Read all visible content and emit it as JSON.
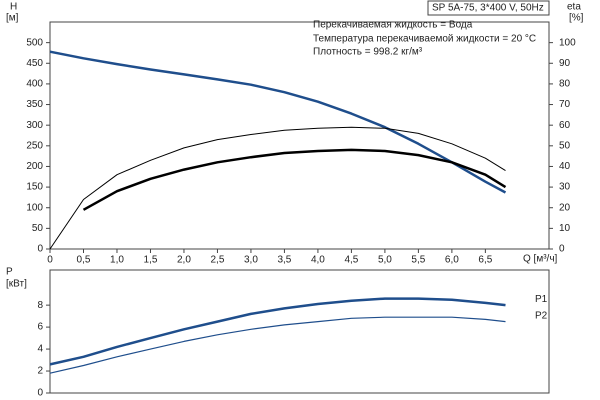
{
  "chart_data": [
    {
      "type": "line",
      "x_label": "Q [м³/ч]",
      "y_label": [
        "H",
        "[м]"
      ],
      "y2_label": [
        "eta",
        "[%]"
      ],
      "legend_box": "SP 5A-75, 3*400 V, 50Hz",
      "annotations": [
        "Перекачиваемая жидкость = Вода",
        "Температура перекачиваемой жидкости = 20 °C",
        "Плотность = 998.2 кг/м³"
      ],
      "x": [
        0,
        0.5,
        1,
        1.5,
        2,
        2.5,
        3,
        3.5,
        4,
        4.5,
        5,
        5.5,
        6,
        6.5,
        6.8
      ],
      "xlim": [
        0,
        7.45
      ],
      "xticks": [
        0,
        {
          "value": 0.5,
          "label": "0,5"
        },
        {
          "value": 1,
          "label": "1,0"
        },
        {
          "value": 1.5,
          "label": "1,5"
        },
        {
          "value": 2,
          "label": "2,0"
        },
        {
          "value": 2.5,
          "label": "2,5"
        },
        {
          "value": 3,
          "label": "3,0"
        },
        {
          "value": 3.5,
          "label": "3,5"
        },
        {
          "value": 4,
          "label": "4,0"
        },
        {
          "value": 4.5,
          "label": "4,5"
        },
        {
          "value": 5,
          "label": "5,0"
        },
        {
          "value": 5.5,
          "label": "5,5"
        },
        {
          "value": 6,
          "label": "6,0"
        },
        {
          "value": 6.5,
          "label": "6,5"
        }
      ],
      "ylim": [
        0,
        550
      ],
      "yticks": [
        0,
        50,
        100,
        150,
        200,
        250,
        300,
        350,
        400,
        450,
        500
      ],
      "y2lim": [
        0,
        110
      ],
      "y2ticks": [
        0,
        10,
        20,
        30,
        40,
        50,
        60,
        70,
        80,
        90,
        100
      ],
      "series": [
        {
          "color": "#1f4e8c",
          "linewidth": 2.5,
          "values": [
            478,
            462,
            448,
            435,
            423,
            411,
            398,
            380,
            357,
            328,
            295,
            255,
            210,
            163,
            137
          ]
        },
        {
          "color": "#000000",
          "linewidth": 1,
          "axis": "y2",
          "values": [
            0,
            24,
            36,
            43,
            49,
            53,
            55.5,
            57.5,
            58.5,
            59,
            58.5,
            56,
            51,
            44,
            38
          ]
        },
        {
          "color": "#000000",
          "linewidth": 2.5,
          "axis": "y2",
          "values": [
            null,
            19,
            28,
            34,
            38.5,
            42,
            44.5,
            46.5,
            47.5,
            48,
            47.5,
            45.5,
            42,
            36,
            30
          ]
        }
      ]
    },
    {
      "type": "line",
      "y_label": [
        "P",
        "[кВт]"
      ],
      "x": [
        0,
        0.5,
        1,
        1.5,
        2,
        2.5,
        3,
        3.5,
        4,
        4.5,
        5,
        5.5,
        6,
        6.5,
        6.8
      ],
      "xlim": [
        0,
        7.45
      ],
      "ylim": [
        0,
        11.2
      ],
      "yticks": [
        0,
        2,
        4,
        6,
        8
      ],
      "series": [
        {
          "name": "P1",
          "color": "#1f4e8c",
          "linewidth": 2.5,
          "values": [
            2.6,
            3.3,
            4.2,
            5.0,
            5.8,
            6.5,
            7.2,
            7.7,
            8.1,
            8.4,
            8.6,
            8.6,
            8.5,
            8.2,
            8.0
          ]
        },
        {
          "name": "P2",
          "color": "#1f4e8c",
          "linewidth": 1.2,
          "values": [
            1.8,
            2.5,
            3.3,
            4.0,
            4.7,
            5.3,
            5.8,
            6.2,
            6.5,
            6.8,
            6.9,
            6.9,
            6.9,
            6.7,
            6.5
          ]
        }
      ]
    }
  ]
}
